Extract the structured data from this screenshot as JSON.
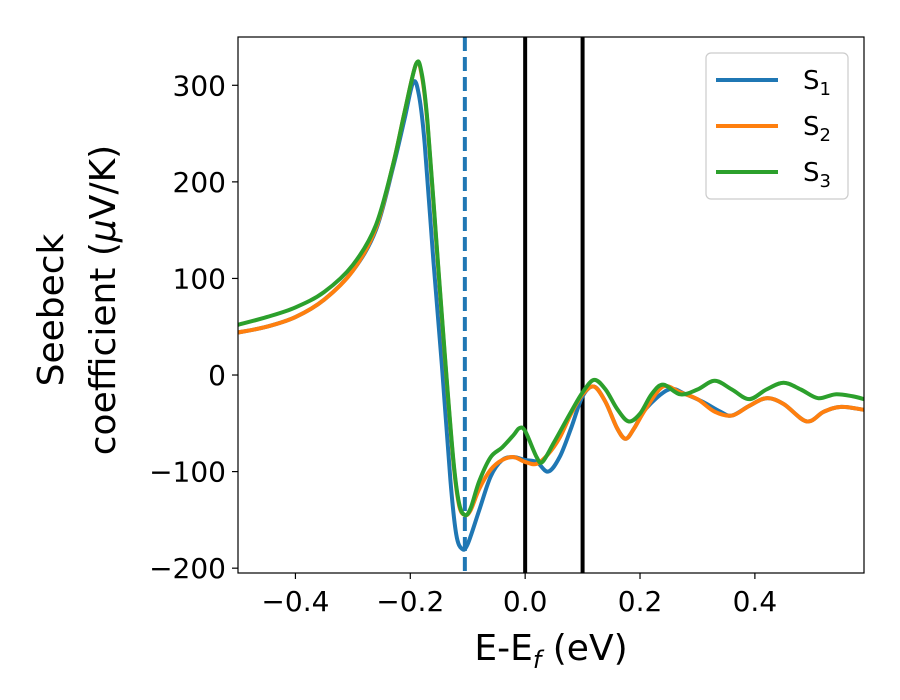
{
  "chart_data": {
    "type": "line",
    "xlabel": {
      "main": "E-E",
      "sub": "f",
      "unit": " (eV)"
    },
    "ylabel": {
      "line1": "Seebeck",
      "line2_text": "coefficient  (",
      "mu": "μ",
      "line2_unit": "V/K)"
    },
    "xlim": [
      -0.5,
      0.59
    ],
    "ylim": [
      -205,
      350
    ],
    "xticks": [
      -0.4,
      -0.2,
      0.0,
      0.2,
      0.4
    ],
    "xtick_labels": [
      "−0.4",
      "−0.2",
      "0.0",
      "0.2",
      "0.4"
    ],
    "yticks": [
      -200,
      -100,
      0,
      100,
      200,
      300
    ],
    "ytick_labels": [
      "−200",
      "−100",
      "0",
      "100",
      "200",
      "300"
    ],
    "grid": false,
    "legend_placement": "top-right",
    "vlines": [
      {
        "x": -0.105,
        "style": "dashed",
        "color": "#1f77b4"
      },
      {
        "x": 0.0,
        "style": "solid",
        "color": "#000000"
      },
      {
        "x": 0.1,
        "style": "solid",
        "color": "#000000"
      }
    ],
    "series": [
      {
        "name": "S",
        "sub": "1",
        "color": "#1f77b4",
        "points": [
          [
            -0.5,
            44
          ],
          [
            -0.45,
            50
          ],
          [
            -0.4,
            60
          ],
          [
            -0.35,
            78
          ],
          [
            -0.3,
            108
          ],
          [
            -0.26,
            150
          ],
          [
            -0.23,
            215
          ],
          [
            -0.21,
            265
          ],
          [
            -0.195,
            303
          ],
          [
            -0.185,
            290
          ],
          [
            -0.175,
            240
          ],
          [
            -0.16,
            120
          ],
          [
            -0.145,
            10
          ],
          [
            -0.13,
            -110
          ],
          [
            -0.12,
            -165
          ],
          [
            -0.11,
            -180
          ],
          [
            -0.1,
            -175
          ],
          [
            -0.08,
            -140
          ],
          [
            -0.06,
            -105
          ],
          [
            -0.04,
            -88
          ],
          [
            -0.02,
            -85
          ],
          [
            0.0,
            -88
          ],
          [
            0.02,
            -90
          ],
          [
            0.04,
            -100
          ],
          [
            0.06,
            -85
          ],
          [
            0.08,
            -55
          ],
          [
            0.1,
            -22
          ],
          [
            0.12,
            -12
          ],
          [
            0.14,
            -28
          ],
          [
            0.16,
            -55
          ],
          [
            0.175,
            -66
          ],
          [
            0.19,
            -55
          ],
          [
            0.21,
            -35
          ],
          [
            0.25,
            -15
          ],
          [
            0.28,
            -20
          ],
          [
            0.31,
            -28
          ],
          [
            0.34,
            -38
          ],
          [
            0.36,
            -42
          ],
          [
            0.39,
            -32
          ],
          [
            0.42,
            -24
          ],
          [
            0.45,
            -30
          ],
          [
            0.49,
            -48
          ],
          [
            0.52,
            -38
          ],
          [
            0.55,
            -33
          ],
          [
            0.59,
            -36
          ]
        ]
      },
      {
        "name": "S",
        "sub": "2",
        "color": "#ff7f0e",
        "points": [
          [
            -0.5,
            44
          ],
          [
            -0.45,
            50
          ],
          [
            -0.4,
            60
          ],
          [
            -0.35,
            78
          ],
          [
            -0.3,
            108
          ],
          [
            -0.26,
            152
          ],
          [
            -0.23,
            218
          ],
          [
            -0.21,
            272
          ],
          [
            -0.19,
            322
          ],
          [
            -0.18,
            310
          ],
          [
            -0.17,
            260
          ],
          [
            -0.155,
            140
          ],
          [
            -0.14,
            20
          ],
          [
            -0.125,
            -90
          ],
          [
            -0.115,
            -135
          ],
          [
            -0.105,
            -145
          ],
          [
            -0.095,
            -140
          ],
          [
            -0.08,
            -118
          ],
          [
            -0.06,
            -98
          ],
          [
            -0.04,
            -88
          ],
          [
            -0.02,
            -85
          ],
          [
            0.0,
            -90
          ],
          [
            0.02,
            -92
          ],
          [
            0.04,
            -82
          ],
          [
            0.06,
            -65
          ],
          [
            0.08,
            -40
          ],
          [
            0.1,
            -20
          ],
          [
            0.12,
            -12
          ],
          [
            0.14,
            -28
          ],
          [
            0.16,
            -55
          ],
          [
            0.175,
            -66
          ],
          [
            0.19,
            -55
          ],
          [
            0.21,
            -35
          ],
          [
            0.24,
            -12
          ],
          [
            0.27,
            -18
          ],
          [
            0.3,
            -25
          ],
          [
            0.33,
            -38
          ],
          [
            0.36,
            -42
          ],
          [
            0.39,
            -32
          ],
          [
            0.42,
            -24
          ],
          [
            0.45,
            -30
          ],
          [
            0.49,
            -48
          ],
          [
            0.52,
            -38
          ],
          [
            0.55,
            -33
          ],
          [
            0.59,
            -36
          ]
        ]
      },
      {
        "name": "S",
        "sub": "3",
        "color": "#2ca02c",
        "points": [
          [
            -0.5,
            52
          ],
          [
            -0.45,
            60
          ],
          [
            -0.4,
            70
          ],
          [
            -0.35,
            86
          ],
          [
            -0.3,
            114
          ],
          [
            -0.26,
            155
          ],
          [
            -0.23,
            218
          ],
          [
            -0.21,
            272
          ],
          [
            -0.19,
            322
          ],
          [
            -0.18,
            312
          ],
          [
            -0.17,
            262
          ],
          [
            -0.155,
            142
          ],
          [
            -0.14,
            22
          ],
          [
            -0.125,
            -88
          ],
          [
            -0.115,
            -133
          ],
          [
            -0.105,
            -145
          ],
          [
            -0.095,
            -138
          ],
          [
            -0.08,
            -110
          ],
          [
            -0.06,
            -85
          ],
          [
            -0.04,
            -75
          ],
          [
            -0.02,
            -62
          ],
          [
            -0.01,
            -55
          ],
          [
            0.0,
            -58
          ],
          [
            0.02,
            -85
          ],
          [
            0.03,
            -90
          ],
          [
            0.05,
            -70
          ],
          [
            0.08,
            -38
          ],
          [
            0.1,
            -18
          ],
          [
            0.12,
            -5
          ],
          [
            0.14,
            -15
          ],
          [
            0.16,
            -35
          ],
          [
            0.18,
            -48
          ],
          [
            0.2,
            -40
          ],
          [
            0.22,
            -20
          ],
          [
            0.24,
            -10
          ],
          [
            0.27,
            -20
          ],
          [
            0.3,
            -15
          ],
          [
            0.33,
            -6
          ],
          [
            0.36,
            -15
          ],
          [
            0.39,
            -25
          ],
          [
            0.42,
            -15
          ],
          [
            0.45,
            -8
          ],
          [
            0.48,
            -15
          ],
          [
            0.51,
            -24
          ],
          [
            0.54,
            -20
          ],
          [
            0.57,
            -22
          ],
          [
            0.59,
            -25
          ]
        ]
      }
    ]
  }
}
